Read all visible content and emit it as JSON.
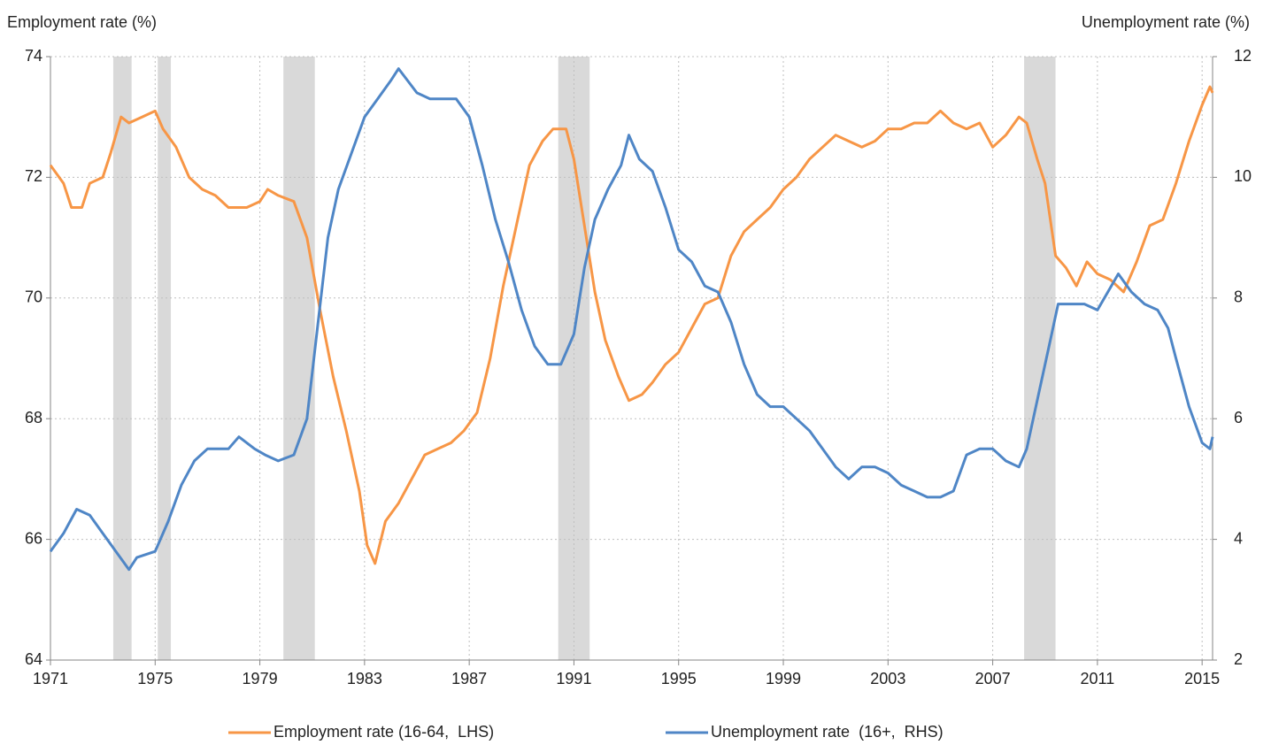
{
  "chart_data": {
    "type": "line",
    "y_label": "Employment rate (%)",
    "y2_label": "Unemployment rate  (%)",
    "xlim": [
      1971,
      2015.4
    ],
    "xticks": [
      1971,
      1975,
      1979,
      1983,
      1987,
      1991,
      1995,
      1999,
      2003,
      2007,
      2011,
      2015
    ],
    "ylim": [
      64,
      74
    ],
    "yticks": [
      64,
      66,
      68,
      70,
      72,
      74
    ],
    "y2lim": [
      2,
      12
    ],
    "y2ticks": [
      2,
      4,
      6,
      8,
      10,
      12
    ],
    "grid": true,
    "shaded_color": "#d9d9d9",
    "shaded_periods": [
      [
        1973.4,
        1974.1
      ],
      [
        1975.1,
        1975.6
      ],
      [
        1979.9,
        1981.1
      ],
      [
        1990.4,
        1991.6
      ],
      [
        2008.2,
        2009.4
      ]
    ],
    "legend": "bottom",
    "series": [
      {
        "name": "Employment rate (16-64,  LHS)",
        "color": "#f79646",
        "axis": "y",
        "x": [
          1971.0,
          1971.5,
          1971.8,
          1972.2,
          1972.5,
          1973.0,
          1973.3,
          1973.7,
          1974.0,
          1974.5,
          1975.0,
          1975.3,
          1975.8,
          1976.3,
          1976.8,
          1977.3,
          1977.8,
          1978.5,
          1979.0,
          1979.3,
          1979.7,
          1980.3,
          1980.8,
          1981.3,
          1981.8,
          1982.3,
          1982.8,
          1983.1,
          1983.4,
          1983.8,
          1984.3,
          1984.8,
          1985.3,
          1985.8,
          1986.3,
          1986.8,
          1987.3,
          1987.8,
          1988.3,
          1988.8,
          1989.3,
          1989.8,
          1990.2,
          1990.7,
          1991.0,
          1991.4,
          1991.8,
          1992.2,
          1992.7,
          1993.1,
          1993.6,
          1994.0,
          1994.5,
          1995.0,
          1995.5,
          1996.0,
          1996.5,
          1997.0,
          1997.5,
          1998.0,
          1998.5,
          1999.0,
          1999.5,
          2000.0,
          2000.5,
          2001.0,
          2001.5,
          2002.0,
          2002.5,
          2003.0,
          2003.5,
          2004.0,
          2004.5,
          2005.0,
          2005.5,
          2006.0,
          2006.5,
          2007.0,
          2007.5,
          2008.0,
          2008.3,
          2008.7,
          2009.0,
          2009.4,
          2009.8,
          2010.2,
          2010.6,
          2011.0,
          2011.5,
          2012.0,
          2012.5,
          2013.0,
          2013.5,
          2014.0,
          2014.5,
          2015.0,
          2015.3,
          2015.4
        ],
        "values": [
          72.2,
          71.9,
          71.5,
          71.5,
          71.9,
          72.0,
          72.4,
          73.0,
          72.9,
          73.0,
          73.1,
          72.8,
          72.5,
          72.0,
          71.8,
          71.7,
          71.5,
          71.5,
          71.6,
          71.8,
          71.7,
          71.6,
          71.0,
          69.8,
          68.7,
          67.8,
          66.8,
          65.9,
          65.6,
          66.3,
          66.6,
          67.0,
          67.4,
          67.5,
          67.6,
          67.8,
          68.1,
          69.0,
          70.2,
          71.2,
          72.2,
          72.6,
          72.8,
          72.8,
          72.3,
          71.2,
          70.1,
          69.3,
          68.7,
          68.3,
          68.4,
          68.6,
          68.9,
          69.1,
          69.5,
          69.9,
          70.0,
          70.7,
          71.1,
          71.3,
          71.5,
          71.8,
          72.0,
          72.3,
          72.5,
          72.7,
          72.6,
          72.5,
          72.6,
          72.8,
          72.8,
          72.9,
          72.9,
          73.1,
          72.9,
          72.8,
          72.9,
          72.5,
          72.7,
          73.0,
          72.9,
          72.3,
          71.9,
          70.7,
          70.5,
          70.2,
          70.6,
          70.4,
          70.3,
          70.1,
          70.6,
          71.2,
          71.3,
          71.9,
          72.6,
          73.2,
          73.5,
          73.4
        ]
      },
      {
        "name": "Unemployment rate  (16+,  RHS)",
        "color": "#4f86c6",
        "axis": "y2",
        "x": [
          1971.0,
          1971.5,
          1972.0,
          1972.5,
          1973.0,
          1973.5,
          1974.0,
          1974.3,
          1975.0,
          1975.5,
          1976.0,
          1976.5,
          1977.0,
          1977.8,
          1978.2,
          1978.8,
          1979.2,
          1979.7,
          1980.3,
          1980.8,
          1981.2,
          1981.6,
          1982.0,
          1982.5,
          1983.0,
          1983.5,
          1984.0,
          1984.3,
          1985.0,
          1985.5,
          1986.5,
          1987.0,
          1987.5,
          1988.0,
          1988.5,
          1989.0,
          1989.5,
          1990.0,
          1990.5,
          1991.0,
          1991.4,
          1991.8,
          1992.3,
          1992.8,
          1993.1,
          1993.5,
          1994.0,
          1994.5,
          1995.0,
          1995.5,
          1996.0,
          1996.5,
          1997.0,
          1997.5,
          1998.0,
          1998.5,
          1999.0,
          1999.5,
          2000.0,
          2000.5,
          2001.0,
          2001.5,
          2002.0,
          2002.5,
          2003.0,
          2003.5,
          2004.0,
          2004.5,
          2005.0,
          2005.5,
          2006.0,
          2006.5,
          2007.0,
          2007.5,
          2008.0,
          2008.3,
          2008.8,
          2009.2,
          2009.5,
          2010.0,
          2010.5,
          2011.0,
          2011.4,
          2011.8,
          2012.3,
          2012.8,
          2013.3,
          2013.7,
          2014.0,
          2014.5,
          2015.0,
          2015.3,
          2015.4
        ],
        "values": [
          3.8,
          4.1,
          4.5,
          4.4,
          4.1,
          3.8,
          3.5,
          3.7,
          3.8,
          4.3,
          4.9,
          5.3,
          5.5,
          5.5,
          5.7,
          5.5,
          5.4,
          5.3,
          5.4,
          6.0,
          7.5,
          9.0,
          9.8,
          10.4,
          11.0,
          11.3,
          11.6,
          11.8,
          11.4,
          11.3,
          11.3,
          11.0,
          10.2,
          9.3,
          8.6,
          7.8,
          7.2,
          6.9,
          6.9,
          7.4,
          8.5,
          9.3,
          9.8,
          10.2,
          10.7,
          10.3,
          10.1,
          9.5,
          8.8,
          8.6,
          8.2,
          8.1,
          7.6,
          6.9,
          6.4,
          6.2,
          6.2,
          6.0,
          5.8,
          5.5,
          5.2,
          5.0,
          5.2,
          5.2,
          5.1,
          4.9,
          4.8,
          4.7,
          4.7,
          4.8,
          5.4,
          5.5,
          5.5,
          5.3,
          5.2,
          5.5,
          6.5,
          7.3,
          7.9,
          7.9,
          7.9,
          7.8,
          8.1,
          8.4,
          8.1,
          7.9,
          7.8,
          7.5,
          7.0,
          6.2,
          5.6,
          5.5,
          5.7
        ]
      }
    ]
  }
}
